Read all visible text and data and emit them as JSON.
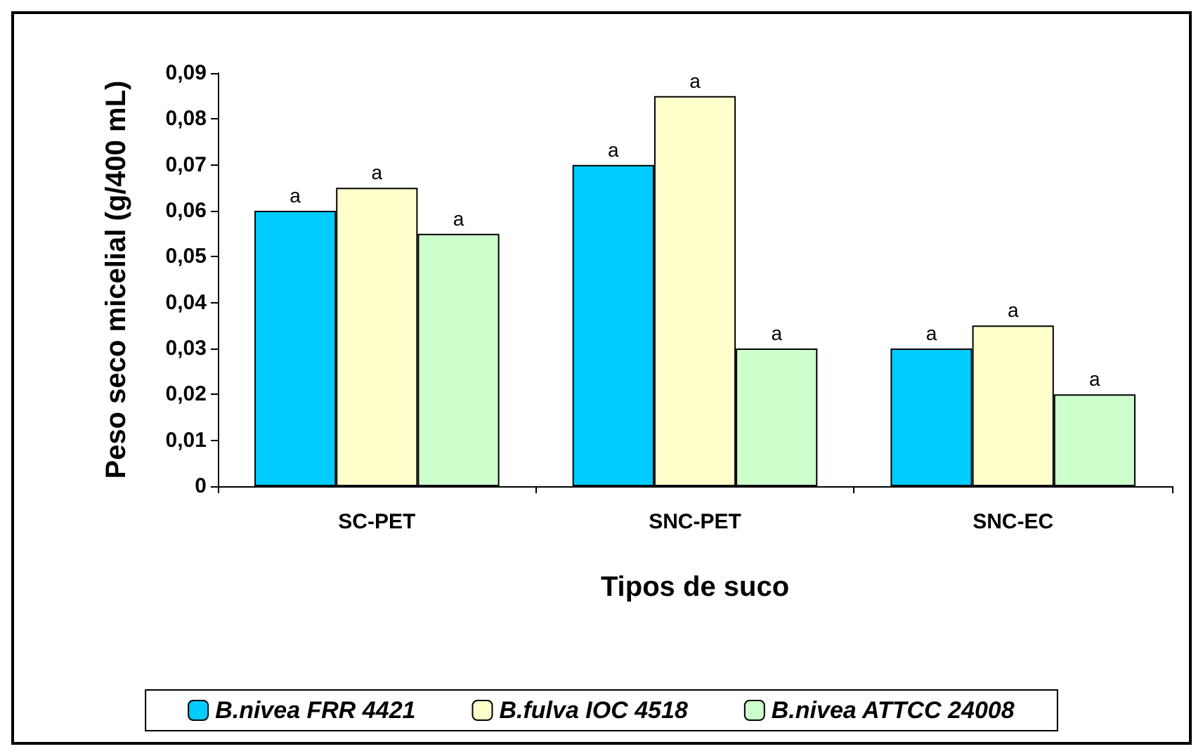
{
  "chart_data": {
    "type": "bar",
    "xlabel": "Tipos de suco",
    "ylabel": "Peso seco micelial (g/400 mL)",
    "categories": [
      "SC-PET",
      "SNC-PET",
      "SNC-EC"
    ],
    "series": [
      {
        "name": "B.nivea FRR 4421",
        "color": "#00ccff",
        "values": [
          0.06,
          0.07,
          0.03
        ],
        "value_labels": [
          "a",
          "a",
          "a"
        ]
      },
      {
        "name": "B.fulva IOC 4518",
        "color": "#ffffcc",
        "values": [
          0.065,
          0.085,
          0.035
        ],
        "value_labels": [
          "a",
          "a",
          "a"
        ]
      },
      {
        "name": "B.nivea ATTCC 24008",
        "color": "#ccffcc",
        "values": [
          0.055,
          0.03,
          0.02
        ],
        "value_labels": [
          "a",
          "a",
          "a"
        ]
      }
    ],
    "ylim": [
      0,
      0.09
    ],
    "yticks": [
      {
        "value": 0,
        "label": "0"
      },
      {
        "value": 0.01,
        "label": "0,01"
      },
      {
        "value": 0.02,
        "label": "0,02"
      },
      {
        "value": 0.03,
        "label": "0,03"
      },
      {
        "value": 0.04,
        "label": "0,04"
      },
      {
        "value": 0.05,
        "label": "0,05"
      },
      {
        "value": 0.06,
        "label": "0,06"
      },
      {
        "value": 0.07,
        "label": "0,07"
      },
      {
        "value": 0.08,
        "label": "0,08"
      },
      {
        "value": 0.09,
        "label": "0,09"
      }
    ],
    "grid": false,
    "legend": "bottom"
  }
}
